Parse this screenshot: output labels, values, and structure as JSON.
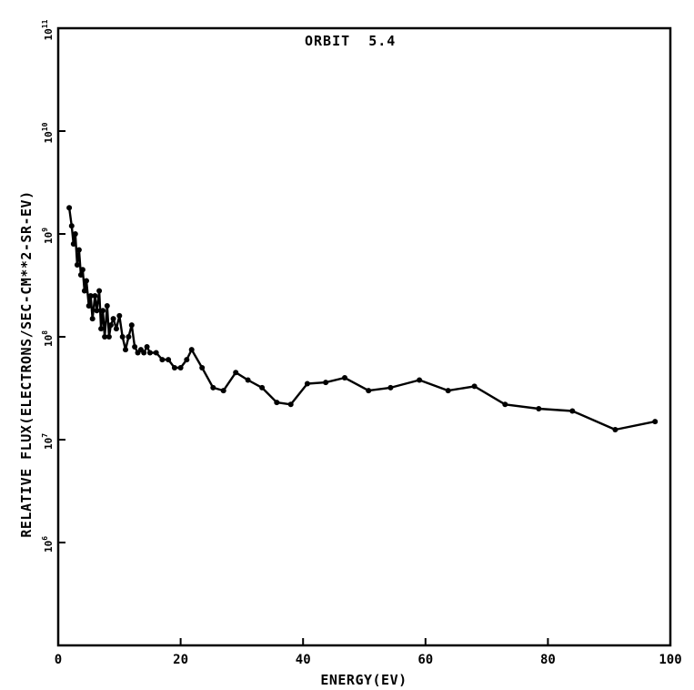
{
  "chart_data": {
    "type": "line",
    "title": "ORBIT  5.4",
    "xlabel": "ENERGY(EV)",
    "ylabel": "RELATIVE FLUX(ELECTRONS/SEC-CM**2-SR-EV)",
    "xlim": [
      0,
      100
    ],
    "ylim_log10": [
      5,
      11
    ],
    "yscale": "log",
    "grid": false,
    "x_ticks": [
      0,
      20,
      40,
      60,
      80,
      100
    ],
    "x_tick_labels": [
      "0",
      "20",
      "40",
      "60",
      "80",
      "100"
    ],
    "y_tick_labels": [
      {
        "base": "10",
        "exp": "11"
      },
      {
        "base": "10",
        "exp": "10"
      },
      {
        "base": "10",
        "exp": "9"
      },
      {
        "base": "10",
        "exp": "8"
      },
      {
        "base": "10",
        "exp": "7"
      },
      {
        "base": "10",
        "exp": "6"
      }
    ],
    "y_tick_exponents": [
      11,
      10,
      9,
      8,
      7,
      6
    ],
    "series": [
      {
        "x": [
          1.8,
          2.2,
          2.5,
          2.8,
          3.1,
          3.4,
          3.7,
          4.0,
          4.3,
          4.6,
          5.0,
          5.3,
          5.6,
          6.0,
          6.3,
          6.7,
          7.0,
          7.3,
          7.6,
          8.0,
          8.3,
          8.6,
          9.0,
          9.5,
          10.0,
          10.5,
          11.0,
          11.5,
          12.0,
          12.5,
          13.0,
          13.5,
          14.0,
          14.5,
          15.0,
          16.0,
          17.0,
          18.0,
          19.0,
          20.0,
          21.0,
          21.8,
          23.5,
          25.3,
          27.0,
          29.0,
          31.0,
          33.3,
          35.7,
          38.0,
          40.7,
          43.7,
          46.8,
          50.7,
          54.3,
          59.0,
          63.7,
          68.0,
          73.0,
          78.5,
          84.0,
          91.0,
          97.5
        ],
        "y": [
          1800000000.0,
          1200000000.0,
          800000000.0,
          1000000000.0,
          500000000.0,
          700000000.0,
          400000000.0,
          450000000.0,
          280000000.0,
          350000000.0,
          200000000.0,
          250000000.0,
          150000000.0,
          250000000.0,
          180000000.0,
          280000000.0,
          120000000.0,
          180000000.0,
          100000000.0,
          200000000.0,
          100000000.0,
          130000000.0,
          150000000.0,
          120000000.0,
          160000000.0,
          100000000.0,
          75000000.0,
          100000000.0,
          130000000.0,
          80000000.0,
          70000000.0,
          75000000.0,
          70000000.0,
          80000000.0,
          70000000.0,
          70000000.0,
          60000000.0,
          60000000.0,
          50000000.0,
          50000000.0,
          60000000.0,
          75000000.0,
          50000000.0,
          32000000.0,
          30000000.0,
          45000000.0,
          38000000.0,
          32000000.0,
          23000000.0,
          22000000.0,
          35000000.0,
          36000000.0,
          40000000.0,
          30000000.0,
          32000000.0,
          38000000.0,
          30000000.0,
          33000000.0,
          22000000.0,
          20000000.0,
          19000000.0,
          12500000.0,
          15000000.0
        ]
      }
    ]
  }
}
